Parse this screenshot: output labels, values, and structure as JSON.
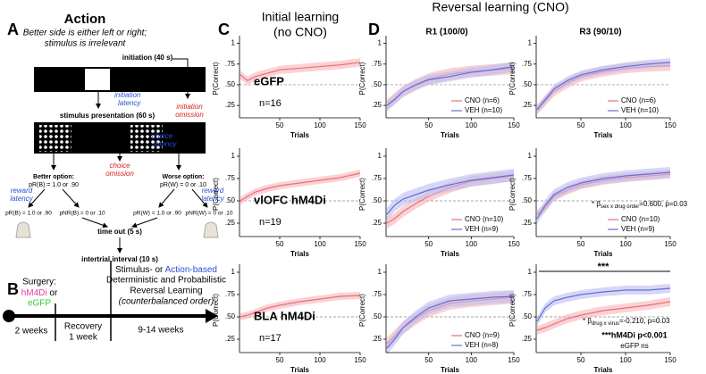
{
  "panel_a": {
    "letter": "A",
    "title": "Action",
    "subtitle_1": "Better side is either left or right;",
    "subtitle_2": "stimulus is irrelevant",
    "initiation": "initiation (40 s)",
    "initiation_latency_1": "initiation",
    "initiation_latency_2": "latency",
    "initiation_omission_1": "initiation",
    "initiation_omission_2": "omission",
    "stimulus": "stimulus presentation (60 s)",
    "choice_latency_1": "choice",
    "choice_latency_2": "latency",
    "choice_omission_1": "choice",
    "choice_omission_2": "omission",
    "better_option": "Better option:",
    "better_probs": "pR(B) =  1.0 or .90",
    "worse_option": "Worse option:",
    "worse_probs": "pR(W) =  0 or .10",
    "reward_latency_1": "reward",
    "reward_latency_2": "latency",
    "left_rewarded": "pR(B) = 1.0 or .90",
    "left_unrewarded": "pNR(B) = 0 or .10",
    "right_rewarded": "pR(W) = 1.0 or .90",
    "right_unrewarded": "pNR(W) = 0 or .10",
    "time_out": "time out (5 s)",
    "iti": "intertrial interval (10 s)"
  },
  "panel_b": {
    "letter": "B",
    "surgery": "Surgery:",
    "hm4di": "hM4Di",
    "or": " or",
    "egfp": "eGFP",
    "weeks_2": "2 weeks",
    "recovery": "Recovery",
    "week_1": "1 week",
    "weeks_9_14": "9-14 weeks",
    "task_1a": "Stimulus- or ",
    "task_1b": "Action-based",
    "task_2": "Deterministic and Probabilistic",
    "task_3": "Reversal Learning",
    "task_4": "(counterbalanced order)"
  },
  "headers": {
    "c_letter": "C",
    "d_letter": "D",
    "c_title_1": "Initial learning",
    "c_title_2": "(no CNO)",
    "d_title": "Reversal learning (CNO)",
    "d_col_1": "R1 (100/0)",
    "d_col_2": "R3 (90/10)"
  },
  "chart_data": [
    {
      "type": "line",
      "ylabel": "P(Correct)",
      "xlabel": "Trials",
      "xlim": [
        0,
        150
      ],
      "ylim": [
        0.1,
        1.05
      ],
      "xticks": [
        50,
        100,
        150
      ],
      "yticks": [
        {
          "value": 0.25,
          "label": ".25"
        },
        {
          "value": 0.5,
          "label": ".50"
        },
        {
          "value": 0.75,
          "label": ".75"
        },
        1
      ],
      "reference": 0.5,
      "x": [
        1,
        10,
        20,
        35,
        50,
        75,
        100,
        125,
        150
      ],
      "label": "eGFP",
      "label_color": "#2ecc2e",
      "n": "n=16",
      "series": [
        {
          "color": "#e8707a",
          "band_color": "#f7b3b8",
          "values": [
            0.62,
            0.55,
            0.6,
            0.64,
            0.68,
            0.7,
            0.72,
            0.74,
            0.77
          ],
          "errors": [
            0.05,
            0.05,
            0.05,
            0.05,
            0.05,
            0.05,
            0.05,
            0.05,
            0.05
          ]
        }
      ]
    },
    {
      "type": "line",
      "ylabel": "P(Correct)",
      "xlabel": "Trials",
      "xlim": [
        0,
        150
      ],
      "ylim": [
        0.1,
        1.05
      ],
      "xticks": [
        50,
        100,
        150
      ],
      "yticks": [
        {
          "value": 0.25,
          "label": ".25"
        },
        {
          "value": 0.5,
          "label": ".50"
        },
        {
          "value": 0.75,
          "label": ".75"
        },
        1
      ],
      "reference": 0.5,
      "x": [
        1,
        10,
        20,
        35,
        50,
        75,
        100,
        125,
        150
      ],
      "label": "vlOFC hM4Di",
      "label_color": "#e0409a",
      "n": "n=19",
      "series": [
        {
          "color": "#e8707a",
          "band_color": "#f7b3b8",
          "values": [
            0.5,
            0.55,
            0.6,
            0.64,
            0.67,
            0.7,
            0.73,
            0.76,
            0.81
          ],
          "errors": [
            0.04,
            0.04,
            0.04,
            0.04,
            0.04,
            0.04,
            0.04,
            0.04,
            0.04
          ]
        }
      ]
    },
    {
      "type": "line",
      "ylabel": "P(Correct)",
      "xlabel": "Trials",
      "xlim": [
        0,
        150
      ],
      "ylim": [
        0.1,
        1.05
      ],
      "xticks": [
        50,
        100,
        150
      ],
      "yticks": [
        {
          "value": 0.25,
          "label": ".25"
        },
        {
          "value": 0.5,
          "label": ".50"
        },
        {
          "value": 0.75,
          "label": ".75"
        },
        1
      ],
      "reference": 0.5,
      "x": [
        1,
        10,
        20,
        35,
        50,
        75,
        100,
        125,
        150
      ],
      "label": "BLA hM4Di",
      "label_color": "#e0409a",
      "n": "n=17",
      "series": [
        {
          "color": "#e8707a",
          "band_color": "#f7b3b8",
          "values": [
            0.5,
            0.52,
            0.55,
            0.6,
            0.63,
            0.67,
            0.7,
            0.73,
            0.74
          ],
          "errors": [
            0.04,
            0.04,
            0.04,
            0.04,
            0.04,
            0.04,
            0.04,
            0.04,
            0.04
          ]
        }
      ]
    },
    {
      "type": "line",
      "ylabel": "P(Correct)",
      "xlabel": "Trials",
      "xlim": [
        0,
        150
      ],
      "ylim": [
        0.1,
        1.05
      ],
      "xticks": [
        50,
        100,
        150
      ],
      "yticks": [
        {
          "value": 0.25,
          "label": ".25"
        },
        {
          "value": 0.5,
          "label": ".50"
        },
        {
          "value": 0.75,
          "label": ".75"
        },
        1
      ],
      "reference": 0.5,
      "x": [
        1,
        10,
        20,
        35,
        50,
        75,
        100,
        125,
        150
      ],
      "series": [
        {
          "name": "CNO (n=6)",
          "color": "#e8707a",
          "band_color": "#f7b3b8",
          "values": [
            0.25,
            0.33,
            0.42,
            0.5,
            0.57,
            0.63,
            0.66,
            0.68,
            0.7
          ],
          "errors": [
            0.07,
            0.07,
            0.07,
            0.07,
            0.07,
            0.07,
            0.07,
            0.07,
            0.07
          ]
        },
        {
          "name": "VEH (n=10)",
          "color": "#6b6bd6",
          "band_color": "#b9bdf2",
          "values": [
            0.25,
            0.32,
            0.42,
            0.5,
            0.56,
            0.6,
            0.65,
            0.68,
            0.72
          ],
          "errors": [
            0.06,
            0.06,
            0.06,
            0.06,
            0.06,
            0.06,
            0.06,
            0.06,
            0.06
          ]
        }
      ]
    },
    {
      "type": "line",
      "ylabel": "P(Correct)",
      "xlabel": "Trials",
      "xlim": [
        0,
        150
      ],
      "ylim": [
        0.1,
        1.05
      ],
      "xticks": [
        50,
        100,
        150
      ],
      "yticks": [
        {
          "value": 0.25,
          "label": ".25"
        },
        {
          "value": 0.5,
          "label": ".50"
        },
        {
          "value": 0.75,
          "label": ".75"
        },
        1
      ],
      "reference": 0.5,
      "x": [
        1,
        10,
        20,
        35,
        50,
        75,
        100,
        125,
        150
      ],
      "series": [
        {
          "name": "CNO (n=6)",
          "color": "#e8707a",
          "band_color": "#f7b3b8",
          "values": [
            0.2,
            0.3,
            0.42,
            0.52,
            0.6,
            0.66,
            0.7,
            0.72,
            0.73
          ],
          "errors": [
            0.06,
            0.06,
            0.06,
            0.06,
            0.06,
            0.06,
            0.06,
            0.06,
            0.06
          ]
        },
        {
          "name": "VEH (n=10)",
          "color": "#6b6bd6",
          "band_color": "#b9bdf2",
          "values": [
            0.2,
            0.32,
            0.45,
            0.55,
            0.62,
            0.68,
            0.72,
            0.75,
            0.77
          ],
          "errors": [
            0.05,
            0.05,
            0.05,
            0.05,
            0.05,
            0.05,
            0.05,
            0.05,
            0.05
          ]
        }
      ]
    },
    {
      "type": "line",
      "ylabel": "P(Correct)",
      "xlabel": "Trials",
      "xlim": [
        0,
        150
      ],
      "ylim": [
        0.1,
        1.05
      ],
      "xticks": [
        50,
        100,
        150
      ],
      "yticks": [
        {
          "value": 0.25,
          "label": ".25"
        },
        {
          "value": 0.5,
          "label": ".50"
        },
        {
          "value": 0.75,
          "label": ".75"
        },
        1
      ],
      "reference": 0.5,
      "x": [
        1,
        10,
        20,
        35,
        50,
        75,
        100,
        125,
        150
      ],
      "series": [
        {
          "name": "CNO (n=10)",
          "color": "#e8707a",
          "band_color": "#f7b3b8",
          "values": [
            0.25,
            0.3,
            0.38,
            0.47,
            0.55,
            0.65,
            0.72,
            0.75,
            0.78
          ],
          "errors": [
            0.06,
            0.06,
            0.06,
            0.06,
            0.06,
            0.06,
            0.06,
            0.06,
            0.06
          ]
        },
        {
          "name": "VEH (n=9)",
          "color": "#6b6bd6",
          "band_color": "#b9bdf2",
          "values": [
            0.35,
            0.45,
            0.52,
            0.57,
            0.62,
            0.68,
            0.73,
            0.76,
            0.79
          ],
          "errors": [
            0.07,
            0.07,
            0.07,
            0.07,
            0.07,
            0.07,
            0.07,
            0.07,
            0.07
          ]
        }
      ]
    },
    {
      "type": "line",
      "ylabel": "P(Correct)",
      "xlabel": "Trials",
      "xlim": [
        0,
        150
      ],
      "ylim": [
        0.1,
        1.05
      ],
      "xticks": [
        50,
        100,
        150
      ],
      "yticks": [
        {
          "value": 0.25,
          "label": ".25"
        },
        {
          "value": 0.5,
          "label": ".50"
        },
        {
          "value": 0.75,
          "label": ".75"
        },
        1
      ],
      "reference": 0.5,
      "x": [
        1,
        10,
        20,
        35,
        50,
        75,
        100,
        125,
        150
      ],
      "annotation": {
        "prefix": "* β",
        "sub": "sex x drug order",
        "suffix": "=0.600, p=0.03"
      },
      "series": [
        {
          "name": "CNO (n=10)",
          "color": "#e8707a",
          "band_color": "#f7b3b8",
          "values": [
            0.35,
            0.42,
            0.55,
            0.62,
            0.68,
            0.73,
            0.76,
            0.78,
            0.8
          ],
          "errors": [
            0.05,
            0.05,
            0.05,
            0.05,
            0.05,
            0.05,
            0.05,
            0.05,
            0.05
          ]
        },
        {
          "name": "VEH (n=9)",
          "color": "#6b6bd6",
          "band_color": "#b9bdf2",
          "values": [
            0.3,
            0.45,
            0.57,
            0.65,
            0.7,
            0.75,
            0.78,
            0.8,
            0.82
          ],
          "errors": [
            0.06,
            0.06,
            0.06,
            0.06,
            0.06,
            0.06,
            0.06,
            0.06,
            0.06
          ]
        }
      ]
    },
    {
      "type": "line",
      "ylabel": "P(Correct)",
      "xlabel": "Trials",
      "xlim": [
        0,
        150
      ],
      "ylim": [
        0.1,
        1.05
      ],
      "xticks": [
        50,
        100,
        150
      ],
      "yticks": [
        {
          "value": 0.25,
          "label": ".25"
        },
        {
          "value": 0.5,
          "label": ".50"
        },
        {
          "value": 0.75,
          "label": ".75"
        },
        1
      ],
      "reference": 0.5,
      "x": [
        1,
        10,
        20,
        35,
        50,
        75,
        100,
        125,
        150
      ],
      "series": [
        {
          "name": "CNO (n=9)",
          "color": "#e8707a",
          "band_color": "#f7b3b8",
          "values": [
            0.2,
            0.28,
            0.38,
            0.48,
            0.57,
            0.65,
            0.68,
            0.7,
            0.72
          ],
          "errors": [
            0.07,
            0.07,
            0.07,
            0.07,
            0.07,
            0.07,
            0.07,
            0.07,
            0.07
          ]
        },
        {
          "name": "VEH (n=8)",
          "color": "#6b6bd6",
          "band_color": "#b9bdf2",
          "values": [
            0.15,
            0.25,
            0.38,
            0.5,
            0.6,
            0.68,
            0.7,
            0.72,
            0.73
          ],
          "errors": [
            0.07,
            0.07,
            0.07,
            0.07,
            0.07,
            0.07,
            0.07,
            0.07,
            0.07
          ]
        }
      ]
    },
    {
      "type": "line",
      "ylabel": "P(Correct)",
      "xlabel": "Trials",
      "xlim": [
        0,
        150
      ],
      "ylim": [
        0.1,
        1.05
      ],
      "xticks": [
        50,
        100,
        150
      ],
      "yticks": [
        {
          "value": 0.25,
          "label": ".25"
        },
        {
          "value": 0.5,
          "label": ".50"
        },
        {
          "value": 0.75,
          "label": ".75"
        },
        1
      ],
      "reference": 0.5,
      "x": [
        1,
        10,
        20,
        35,
        50,
        75,
        100,
        125,
        150
      ],
      "significance": "***",
      "annotation": {
        "prefix": "* β",
        "sub": "drug x virus",
        "suffix": "=-0.210, p=0.03"
      },
      "note_1": "***hM4Di p<0.001",
      "note_2": "eGFP ns",
      "series": [
        {
          "color": "#e8707a",
          "band_color": "#f7b3b8",
          "values": [
            0.35,
            0.38,
            0.42,
            0.48,
            0.52,
            0.57,
            0.6,
            0.63,
            0.67
          ],
          "errors": [
            0.05,
            0.05,
            0.05,
            0.05,
            0.05,
            0.05,
            0.05,
            0.05,
            0.05
          ]
        },
        {
          "color": "#6b6bd6",
          "band_color": "#b9bdf2",
          "values": [
            0.45,
            0.6,
            0.68,
            0.72,
            0.75,
            0.78,
            0.8,
            0.8,
            0.82
          ],
          "errors": [
            0.05,
            0.05,
            0.05,
            0.05,
            0.05,
            0.05,
            0.05,
            0.05,
            0.05
          ]
        }
      ]
    }
  ]
}
